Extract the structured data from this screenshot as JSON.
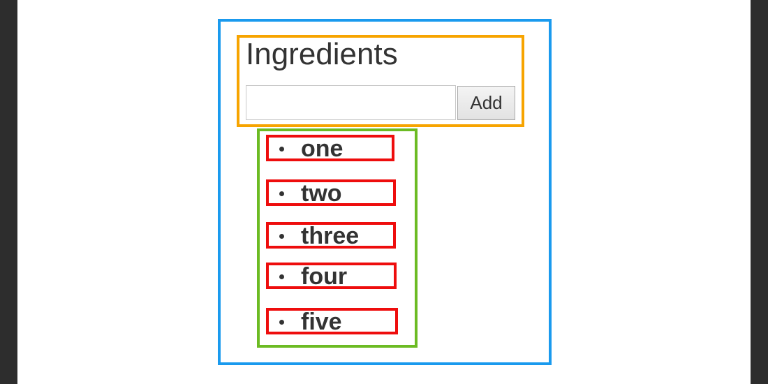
{
  "app": {
    "title": "Ingredients",
    "input": {
      "value": "",
      "placeholder": ""
    },
    "add_label": "Add",
    "items": [
      {
        "label": "one"
      },
      {
        "label": "two"
      },
      {
        "label": "three"
      },
      {
        "label": "four"
      },
      {
        "label": "five"
      }
    ]
  },
  "colors": {
    "outer_frame": "#1a9aee",
    "form_frame": "#f7a400",
    "list_frame": "#6cbb23",
    "item_frame": "#ee0d0d",
    "text": "#333333",
    "side_bars": "#2d2d2d"
  }
}
